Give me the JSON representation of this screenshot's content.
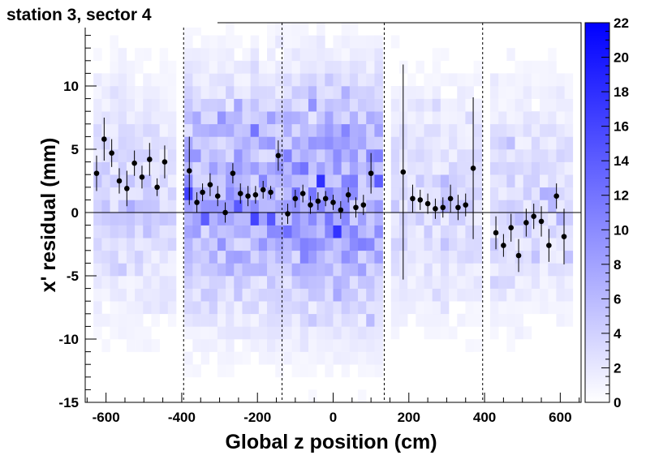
{
  "chart_data": {
    "type": "heatmap",
    "title": "station 3, sector 4",
    "xlabel": "Global z position (cm)",
    "ylabel": "x' residual (mm)",
    "xlim": [
      -655,
      655
    ],
    "ylim": [
      -15,
      15
    ],
    "x_ticks": [
      -600,
      -400,
      -200,
      0,
      200,
      400,
      600
    ],
    "y_ticks": [
      -15,
      -10,
      -5,
      0,
      5,
      10
    ],
    "colorbar": {
      "range": [
        0,
        22
      ],
      "ticks": [
        0,
        2,
        4,
        6,
        8,
        10,
        12,
        14,
        16,
        18,
        20,
        22
      ],
      "low_color": "#ffffff",
      "high_color": "#0000ff"
    },
    "chamber_boundaries_x": [
      -395,
      -135,
      135,
      395
    ],
    "reference_line_y": 0,
    "points": [
      {
        "x": -625,
        "y": 3.1,
        "err": 1.4
      },
      {
        "x": -605,
        "y": 5.8,
        "err": 1.7
      },
      {
        "x": -585,
        "y": 4.7,
        "err": 1.1
      },
      {
        "x": -565,
        "y": 2.5,
        "err": 1.0
      },
      {
        "x": -545,
        "y": 1.9,
        "err": 1.4
      },
      {
        "x": -525,
        "y": 3.9,
        "err": 1.0
      },
      {
        "x": -505,
        "y": 2.8,
        "err": 0.9
      },
      {
        "x": -485,
        "y": 4.2,
        "err": 1.3
      },
      {
        "x": -465,
        "y": 2.0,
        "err": 0.7
      },
      {
        "x": -445,
        "y": 4.0,
        "err": 1.3
      },
      {
        "x": -380,
        "y": 3.3,
        "err": 2.7
      },
      {
        "x": -360,
        "y": 0.8,
        "err": 0.8
      },
      {
        "x": -345,
        "y": 1.6,
        "err": 0.7
      },
      {
        "x": -325,
        "y": 2.2,
        "err": 0.9
      },
      {
        "x": -305,
        "y": 1.3,
        "err": 0.8
      },
      {
        "x": -285,
        "y": 0.0,
        "err": 0.8
      },
      {
        "x": -265,
        "y": 3.1,
        "err": 0.8
      },
      {
        "x": -245,
        "y": 1.5,
        "err": 0.8
      },
      {
        "x": -225,
        "y": 1.3,
        "err": 0.8
      },
      {
        "x": -205,
        "y": 1.4,
        "err": 0.7
      },
      {
        "x": -185,
        "y": 1.8,
        "err": 0.7
      },
      {
        "x": -165,
        "y": 1.6,
        "err": 0.5
      },
      {
        "x": -145,
        "y": 4.5,
        "err": 1.2
      },
      {
        "x": -120,
        "y": -0.1,
        "err": 0.8
      },
      {
        "x": -100,
        "y": 1.1,
        "err": 0.7
      },
      {
        "x": -80,
        "y": 1.5,
        "err": 0.7
      },
      {
        "x": -60,
        "y": 0.6,
        "err": 0.7
      },
      {
        "x": -40,
        "y": 0.9,
        "err": 0.7
      },
      {
        "x": -20,
        "y": 1.1,
        "err": 0.6
      },
      {
        "x": 0,
        "y": 0.8,
        "err": 0.6
      },
      {
        "x": 20,
        "y": 0.2,
        "err": 0.7
      },
      {
        "x": 40,
        "y": 1.4,
        "err": 0.6
      },
      {
        "x": 60,
        "y": 0.4,
        "err": 0.8
      },
      {
        "x": 80,
        "y": 0.6,
        "err": 0.8
      },
      {
        "x": 100,
        "y": 3.1,
        "err": 1.6
      },
      {
        "x": 185,
        "y": 3.2,
        "err": 8.5
      },
      {
        "x": 210,
        "y": 1.1,
        "err": 1.1
      },
      {
        "x": 230,
        "y": 1.0,
        "err": 0.8
      },
      {
        "x": 250,
        "y": 0.7,
        "err": 0.8
      },
      {
        "x": 270,
        "y": 0.3,
        "err": 0.8
      },
      {
        "x": 290,
        "y": 0.4,
        "err": 0.8
      },
      {
        "x": 310,
        "y": 1.1,
        "err": 1.1
      },
      {
        "x": 330,
        "y": 0.4,
        "err": 1.0
      },
      {
        "x": 350,
        "y": 0.6,
        "err": 0.9
      },
      {
        "x": 370,
        "y": 3.5,
        "err": 5.6
      },
      {
        "x": 430,
        "y": -1.6,
        "err": 1.3
      },
      {
        "x": 450,
        "y": -2.6,
        "err": 0.9
      },
      {
        "x": 470,
        "y": -1.2,
        "err": 1.1
      },
      {
        "x": 490,
        "y": -3.4,
        "err": 1.3
      },
      {
        "x": 510,
        "y": -0.8,
        "err": 1.1
      },
      {
        "x": 530,
        "y": -0.3,
        "err": 1.0
      },
      {
        "x": 550,
        "y": -0.7,
        "err": 1.2
      },
      {
        "x": 570,
        "y": -2.6,
        "err": 1.3
      },
      {
        "x": 590,
        "y": 1.3,
        "err": 1.0
      },
      {
        "x": 610,
        "y": -1.9,
        "err": 2.2
      }
    ]
  }
}
